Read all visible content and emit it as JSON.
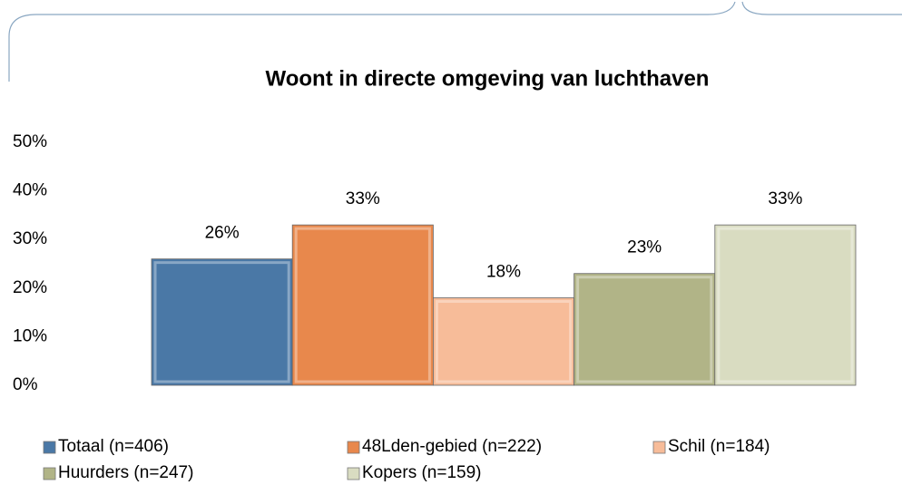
{
  "chart_data": {
    "type": "bar",
    "title": "Woont in directe omgeving van luchthaven",
    "categories": [
      null
    ],
    "series": [
      {
        "name": "Totaal (n=406)",
        "color": "#4a78a6",
        "values": [
          26
        ],
        "value_labels": [
          "26%"
        ]
      },
      {
        "name": "48Lden-gebied (n=222)",
        "color": "#e8884c",
        "values": [
          33
        ],
        "value_labels": [
          "33%"
        ]
      },
      {
        "name": "Schil (n=184)",
        "color": "#f7bc99",
        "values": [
          18
        ],
        "value_labels": [
          "18%"
        ]
      },
      {
        "name": "Huurders (n=247)",
        "color": "#b1b487",
        "values": [
          23
        ],
        "value_labels": [
          "23%"
        ]
      },
      {
        "name": "Kopers (n=159)",
        "color": "#d9dcc1",
        "values": [
          33
        ],
        "value_labels": [
          "33%"
        ]
      }
    ],
    "ylim": [
      0,
      50
    ],
    "yticks": [
      {
        "value": 0,
        "label": "0%"
      },
      {
        "value": 10,
        "label": "10%"
      },
      {
        "value": 20,
        "label": "20%"
      },
      {
        "value": 30,
        "label": "30%"
      },
      {
        "value": 40,
        "label": "40%"
      },
      {
        "value": 50,
        "label": "50%"
      }
    ],
    "grid": false,
    "legend": "bottom"
  }
}
